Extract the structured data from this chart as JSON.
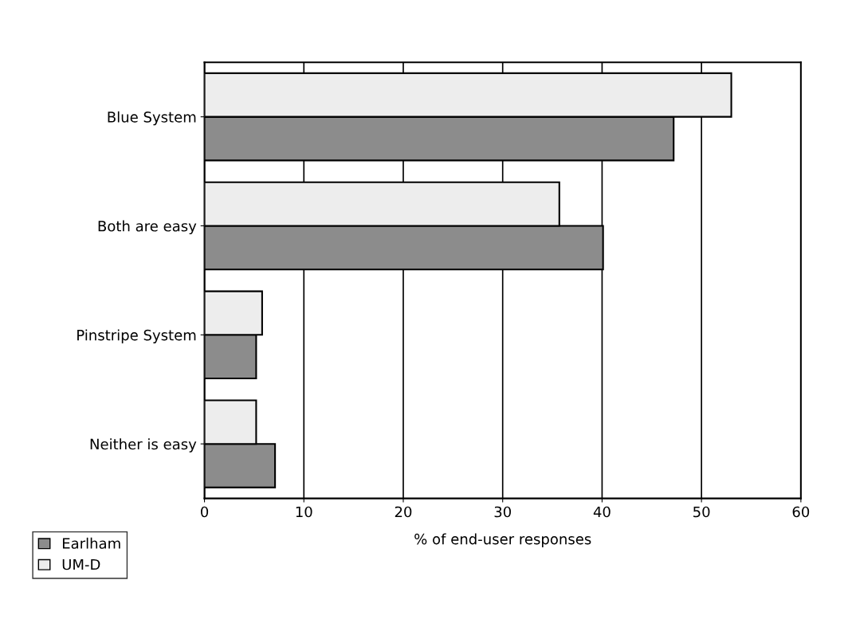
{
  "chart_data": {
    "type": "bar",
    "orientation": "horizontal",
    "xlabel": "% of end-user responses",
    "categories": [
      "Blue System",
      "Both are easy",
      "Pinstripe System",
      "Neither is easy"
    ],
    "series": [
      {
        "name": "Earlham",
        "color": "#8c8c8c",
        "values": [
          47.2,
          40.1,
          5.2,
          7.1
        ]
      },
      {
        "name": "UM-D",
        "color": "#ededed",
        "values": [
          53.0,
          35.7,
          5.8,
          5.2
        ]
      }
    ],
    "xlim": [
      0,
      60
    ],
    "xticks": [
      0,
      10,
      20,
      30,
      40,
      50,
      60
    ],
    "grid": "x",
    "legend": "bottom left"
  }
}
